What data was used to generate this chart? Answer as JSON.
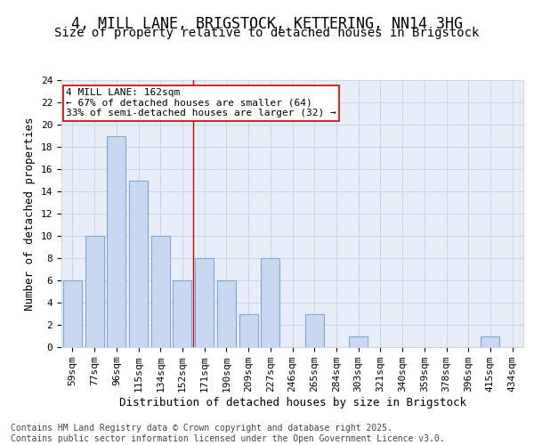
{
  "title1": "4, MILL LANE, BRIGSTOCK, KETTERING, NN14 3HG",
  "title2": "Size of property relative to detached houses in Brigstock",
  "xlabel": "Distribution of detached houses by size in Brigstock",
  "ylabel": "Number of detached properties",
  "categories": [
    "59sqm",
    "77sqm",
    "96sqm",
    "115sqm",
    "134sqm",
    "152sqm",
    "171sqm",
    "190sqm",
    "209sqm",
    "227sqm",
    "246sqm",
    "265sqm",
    "284sqm",
    "303sqm",
    "321sqm",
    "340sqm",
    "359sqm",
    "378sqm",
    "396sqm",
    "415sqm",
    "434sqm"
  ],
  "values": [
    6,
    10,
    19,
    15,
    10,
    6,
    8,
    6,
    3,
    8,
    0,
    3,
    0,
    1,
    0,
    0,
    0,
    0,
    0,
    1,
    0
  ],
  "bar_color": "#c8d8f0",
  "bar_edge_color": "#7aaad0",
  "grid_color": "#c8d4e8",
  "background_color": "#e8eef8",
  "vline_x_index": 5.5,
  "vline_color": "#cc0000",
  "annotation_line1": "4 MILL LANE: 162sqm",
  "annotation_line2": "← 67% of detached houses are smaller (64)",
  "annotation_line3": "33% of semi-detached houses are larger (32) →",
  "annotation_box_color": "#ffffff",
  "annotation_box_edge_color": "#cc0000",
  "ylim": [
    0,
    24
  ],
  "yticks": [
    0,
    2,
    4,
    6,
    8,
    10,
    12,
    14,
    16,
    18,
    20,
    22,
    24
  ],
  "footnote": "Contains HM Land Registry data © Crown copyright and database right 2025.\nContains public sector information licensed under the Open Government Licence v3.0.",
  "title_fontsize": 12,
  "subtitle_fontsize": 10,
  "tick_fontsize": 8,
  "label_fontsize": 9,
  "annotation_fontsize": 8,
  "footnote_fontsize": 7
}
